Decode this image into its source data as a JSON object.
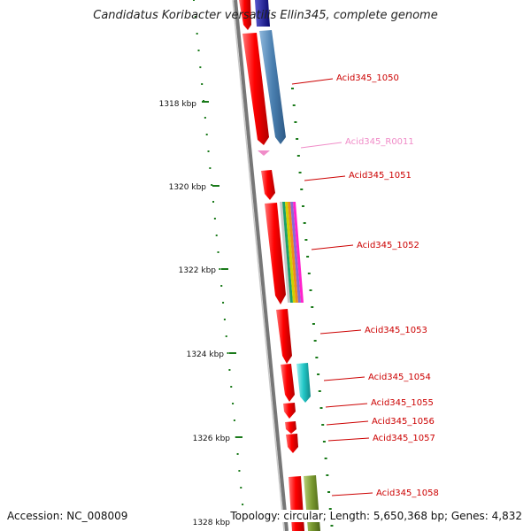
{
  "title": "Candidatus Koribacter versatilis Ellin345, complete genome",
  "footer": {
    "accession": "Accession: NC_008009",
    "topology": "Topology: circular; Length: 5,650,368 bp; Genes: 4,832"
  },
  "scale_labels": [
    "1318 kbp",
    "1320 kbp",
    "1322 kbp",
    "1324 kbp",
    "1326 kbp",
    "1328 kbp"
  ],
  "gene_labels": [
    {
      "label": "Acid345_1050",
      "color": "#cc0000"
    },
    {
      "label": "Acid345_R0011",
      "color": "#f08cc8"
    },
    {
      "label": "Acid345_1051",
      "color": "#cc0000"
    },
    {
      "label": "Acid345_1052",
      "color": "#cc0000"
    },
    {
      "label": "Acid345_1053",
      "color": "#cc0000"
    },
    {
      "label": "Acid345_1054",
      "color": "#cc0000"
    },
    {
      "label": "Acid345_1055",
      "color": "#cc0000"
    },
    {
      "label": "Acid345_1056",
      "color": "#cc0000"
    },
    {
      "label": "Acid345_1057",
      "color": "#cc0000"
    },
    {
      "label": "Acid345_1058",
      "color": "#cc0000"
    }
  ],
  "colors": {
    "gene": "#ff0000",
    "tick": "#1a7a1a",
    "backbone": "#777777",
    "label": "#cc0000",
    "rna": "#f08cc8",
    "steelblue": "#4a7fb0",
    "cyan": "#22c8c8",
    "olive": "#7a9a30",
    "navy": "#1a1a8a"
  }
}
